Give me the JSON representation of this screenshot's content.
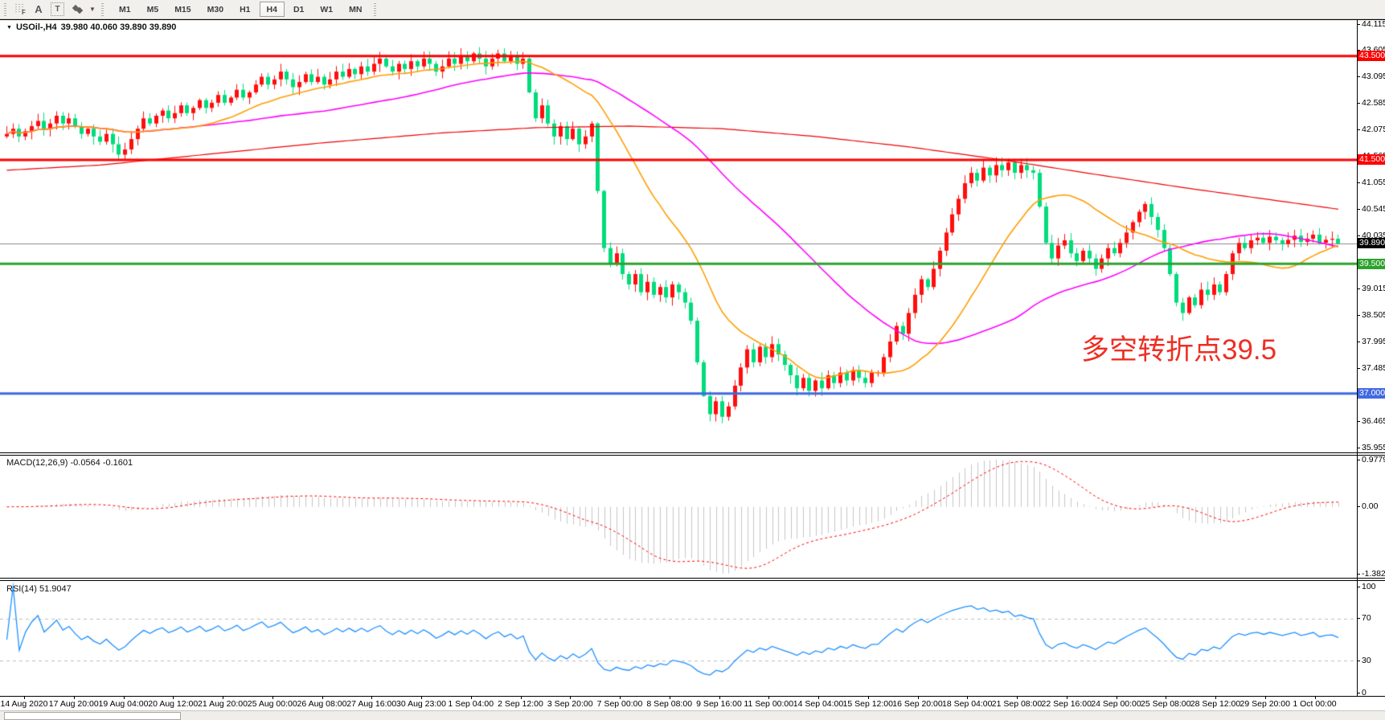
{
  "toolbar": {
    "tools": [
      {
        "name": "fibo-grid"
      },
      {
        "name": "text-label"
      },
      {
        "name": "text-box"
      },
      {
        "name": "arrow-objects"
      }
    ],
    "timeframes": [
      "M1",
      "M5",
      "M15",
      "M30",
      "H1",
      "H4",
      "D1",
      "W1",
      "MN"
    ],
    "active_timeframe": "H4"
  },
  "chart": {
    "symbol": "USOil-,H4",
    "quote": "39.980 40.060 39.890 39.890",
    "annotation": {
      "text": "多空转折点39.5",
      "color": "#ee2e24"
    }
  },
  "indicators": {
    "macd": {
      "label": "MACD(12,26,9)",
      "values": "-0.0564 -0.1601"
    },
    "rsi": {
      "label": "RSI(14)",
      "value": "51.9047"
    }
  },
  "chart_data": {
    "type": "candlestick",
    "symbol": "USOil",
    "timeframe": "H4",
    "ylim": [
      35.955,
      44.115
    ],
    "price_axis_ticks": [
      44.115,
      43.605,
      43.095,
      42.585,
      42.075,
      41.565,
      41.055,
      40.545,
      40.035,
      39.525,
      39.015,
      38.505,
      37.995,
      37.485,
      36.975,
      36.465,
      35.955
    ],
    "price_badges": [
      {
        "text": "43.500",
        "price": 43.5,
        "bg": "#ff0000"
      },
      {
        "text": "41.500",
        "price": 41.5,
        "bg": "#ff0000"
      },
      {
        "text": "39.890",
        "price": 39.89,
        "bg": "#000000"
      },
      {
        "text": "39.500",
        "price": 39.5,
        "bg": "#2ca22c"
      },
      {
        "text": "37.000",
        "price": 37.0,
        "bg": "#4169e1"
      }
    ],
    "horizontal_lines": [
      {
        "price": 43.5,
        "color": "#ff0000",
        "width": 3
      },
      {
        "price": 41.5,
        "color": "#ff0000",
        "width": 3
      },
      {
        "price": 39.89,
        "color": "#8a8a8a",
        "width": 1
      },
      {
        "price": 39.5,
        "color": "#2ca22c",
        "width": 3
      },
      {
        "price": 37.0,
        "color": "#4169e1",
        "width": 3
      }
    ],
    "x_labels": [
      "14 Aug 2020",
      "17 Aug 20:00",
      "19 Aug 04:00",
      "20 Aug 12:00",
      "21 Aug 20:00",
      "25 Aug 00:00",
      "26 Aug 08:00",
      "27 Aug 16:00",
      "30 Aug 23:00",
      "1 Sep 04:00",
      "2 Sep 12:00",
      "3 Sep 20:00",
      "7 Sep 00:00",
      "8 Sep 08:00",
      "9 Sep 16:00",
      "11 Sep 00:00",
      "14 Sep 04:00",
      "15 Sep 12:00",
      "16 Sep 20:00",
      "18 Sep 04:00",
      "21 Sep 08:00",
      "22 Sep 16:00",
      "24 Sep 00:00",
      "25 Sep 08:00",
      "28 Sep 12:00",
      "29 Sep 20:00",
      "1 Oct 00:00"
    ],
    "first_open": 41.95,
    "last_bar": [
      39.98,
      40.06,
      39.89,
      39.89
    ],
    "closes": [
      42.0,
      42.1,
      41.95,
      42.05,
      42.15,
      42.25,
      42.1,
      42.2,
      42.35,
      42.2,
      42.3,
      42.15,
      42.0,
      42.1,
      41.95,
      41.85,
      42.0,
      41.8,
      41.6,
      41.7,
      41.9,
      42.1,
      42.3,
      42.2,
      42.35,
      42.45,
      42.3,
      42.4,
      42.55,
      42.4,
      42.5,
      42.65,
      42.5,
      42.6,
      42.75,
      42.6,
      42.7,
      42.85,
      42.7,
      42.8,
      42.95,
      43.1,
      42.95,
      43.05,
      43.2,
      43.05,
      42.9,
      43.0,
      43.15,
      43.0,
      43.1,
      42.95,
      43.05,
      43.2,
      43.1,
      43.25,
      43.15,
      43.3,
      43.2,
      43.35,
      43.45,
      43.3,
      43.2,
      43.35,
      43.25,
      43.4,
      43.3,
      43.45,
      43.35,
      43.2,
      43.3,
      43.45,
      43.35,
      43.5,
      43.4,
      43.55,
      43.45,
      43.3,
      43.45,
      43.55,
      43.4,
      43.5,
      43.35,
      43.45,
      42.8,
      42.3,
      42.55,
      42.2,
      41.95,
      42.15,
      41.9,
      42.1,
      41.8,
      41.95,
      42.2,
      40.9,
      39.8,
      39.5,
      39.7,
      39.3,
      39.1,
      39.3,
      38.95,
      39.15,
      38.9,
      39.05,
      38.85,
      39.1,
      38.95,
      38.75,
      38.4,
      37.6,
      36.95,
      36.6,
      36.85,
      36.55,
      36.75,
      37.15,
      37.5,
      37.85,
      37.6,
      37.9,
      37.7,
      37.95,
      37.75,
      37.55,
      37.35,
      37.1,
      37.3,
      37.05,
      37.25,
      37.1,
      37.35,
      37.2,
      37.4,
      37.25,
      37.45,
      37.3,
      37.2,
      37.4,
      37.4,
      37.7,
      38.0,
      38.3,
      38.15,
      38.55,
      38.9,
      39.2,
      39.05,
      39.4,
      39.75,
      40.1,
      40.45,
      40.75,
      41.05,
      41.25,
      41.1,
      41.35,
      41.2,
      41.4,
      41.3,
      41.45,
      41.25,
      41.4,
      41.3,
      41.25,
      40.6,
      39.9,
      39.6,
      39.85,
      39.95,
      39.7,
      39.55,
      39.75,
      39.6,
      39.4,
      39.6,
      39.8,
      39.7,
      39.9,
      40.1,
      40.3,
      40.5,
      40.65,
      40.4,
      40.15,
      39.8,
      39.3,
      38.75,
      38.55,
      38.85,
      38.7,
      39.0,
      38.9,
      39.1,
      38.95,
      39.3,
      39.7,
      39.9,
      39.8,
      39.95,
      40.0,
      39.9,
      40.02,
      39.95,
      39.88,
      39.96,
      40.04,
      39.92,
      39.98,
      40.06,
      39.9,
      39.96,
      39.98,
      39.89
    ],
    "candle_colors": {
      "up": "#ff0e0e",
      "down": "#00dc7c"
    },
    "moving_averages": [
      {
        "name": "fast",
        "period": 20,
        "color": "#ff9d00"
      },
      {
        "name": "mid",
        "period": 52,
        "color": "#ff00ff"
      },
      {
        "name": "slow",
        "color": "#ee0000",
        "anchors": [
          [
            0,
            41.3
          ],
          [
            15,
            41.4
          ],
          [
            30,
            41.58
          ],
          [
            50,
            41.82
          ],
          [
            70,
            42.02
          ],
          [
            85,
            42.12
          ],
          [
            100,
            42.15
          ],
          [
            115,
            42.1
          ],
          [
            130,
            41.95
          ],
          [
            145,
            41.75
          ],
          [
            160,
            41.5
          ],
          [
            175,
            41.22
          ],
          [
            190,
            40.95
          ],
          [
            205,
            40.7
          ],
          [
            214,
            40.55
          ]
        ]
      }
    ],
    "macd": {
      "label": "MACD(12,26,9)",
      "current_main": -0.0564,
      "current_signal": -0.1601,
      "scale": [
        "0.9779",
        "0.00",
        "-1.382"
      ],
      "scale_max": 0.9779,
      "scale_min": -1.382,
      "hist_color": "#c6c6c6",
      "signal_color": "#ff0000"
    },
    "rsi": {
      "label": "RSI(14)",
      "period": 14,
      "current": 51.9047,
      "scale": [
        100,
        70,
        30,
        0
      ],
      "levels_dashed": [
        70,
        30
      ],
      "line_color": "#1e90ff",
      "level_color": "#bdbdbd"
    }
  }
}
